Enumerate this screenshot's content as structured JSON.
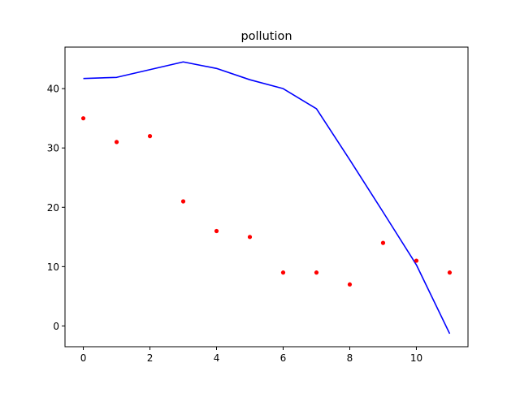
{
  "chart_data": {
    "type": "line",
    "title": "pollution",
    "xlabel": "",
    "ylabel": "",
    "xlim": [
      -0.55,
      11.55
    ],
    "ylim": [
      -3.5,
      47.0
    ],
    "xticks": [
      0,
      2,
      4,
      6,
      8,
      10
    ],
    "yticks": [
      0,
      10,
      20,
      30,
      40
    ],
    "grid": false,
    "series": [
      {
        "kind": "line",
        "color": "#0000ff",
        "x": [
          0,
          1,
          2,
          3,
          4,
          5,
          6,
          7,
          8,
          9,
          10,
          11
        ],
        "values": [
          41.7,
          41.9,
          43.2,
          44.5,
          43.4,
          41.5,
          40.0,
          36.6,
          28.0,
          19.2,
          10.3,
          -1.3
        ]
      },
      {
        "kind": "scatter",
        "color": "#ff0000",
        "x": [
          0,
          1,
          2,
          3,
          4,
          5,
          6,
          7,
          8,
          9,
          10,
          11
        ],
        "values": [
          35,
          31,
          32,
          21,
          16,
          15,
          9,
          9,
          7,
          14,
          11,
          9
        ]
      }
    ]
  }
}
